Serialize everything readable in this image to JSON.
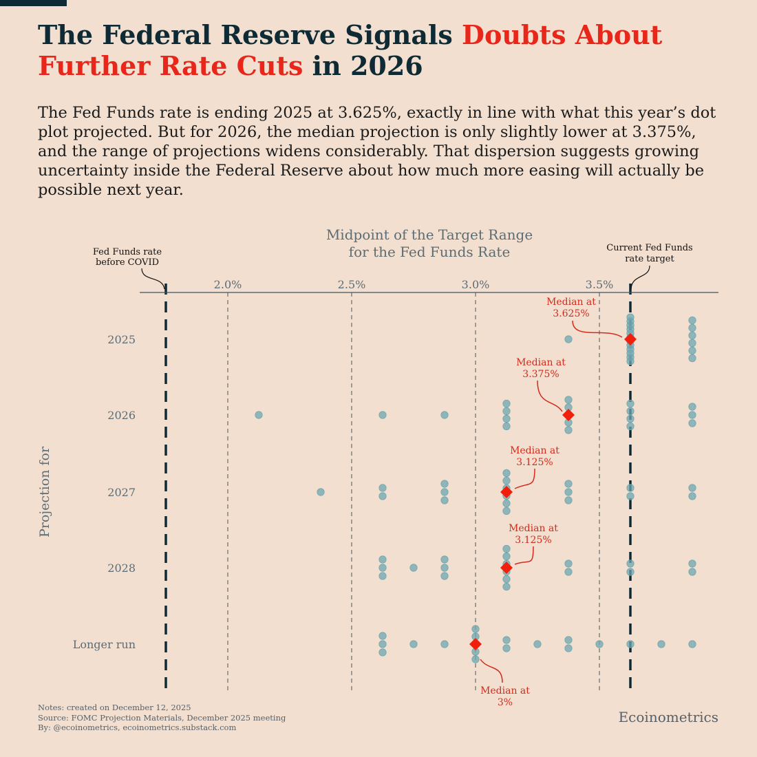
{
  "title": {
    "part1": "The Federal Reserve Signals ",
    "part2_red": "Doubts About Further Rate Cuts",
    "part3": " in 2026"
  },
  "subtitle": "The Fed Funds rate is ending 2025 at 3.625%, exactly in line with what this year’s dot plot projected. But for 2026, the median projection is only slightly lower at 3.375%, and the range of projections widens considerably. That dispersion suggests growing uncertainty inside the Federal Reserve about how much more easing will actually be possible next year.",
  "colors": {
    "navy": "#0e2a35",
    "red": "#e8261a",
    "dot": "#6fa7b0",
    "background": "#f2dfcf"
  },
  "chart_data": {
    "type": "scatter",
    "title": "Midpoint of the Target Range for the Fed Funds Rate",
    "title_lines": [
      "Midpoint of the Target Range",
      "for the Fed Funds Rate"
    ],
    "ylabel": "Projection for",
    "xlim": [
      1.7,
      3.92
    ],
    "x_ticks": [
      2.0,
      2.5,
      3.0,
      3.5
    ],
    "x_tick_labels": [
      "2.0%",
      "2.5%",
      "3.0%",
      "3.5%"
    ],
    "categories": [
      "2025",
      "2026",
      "2027",
      "2028",
      "Longer run"
    ],
    "reference_lines": [
      {
        "value": 1.75,
        "label_lines": [
          "Fed Funds rate",
          "before COVID"
        ]
      },
      {
        "value": 3.625,
        "label_lines": [
          "Current Fed Funds",
          "rate target"
        ]
      }
    ],
    "dots": [
      [
        {
          "x": 3.375,
          "n": 1
        },
        {
          "x": 3.625,
          "n": 12
        },
        {
          "x": 3.875,
          "n": 6
        }
      ],
      [
        {
          "x": 2.125,
          "n": 1
        },
        {
          "x": 2.625,
          "n": 1
        },
        {
          "x": 2.875,
          "n": 1
        },
        {
          "x": 3.125,
          "n": 4
        },
        {
          "x": 3.375,
          "n": 5
        },
        {
          "x": 3.625,
          "n": 4
        },
        {
          "x": 3.875,
          "n": 3
        }
      ],
      [
        {
          "x": 2.375,
          "n": 1
        },
        {
          "x": 2.625,
          "n": 2
        },
        {
          "x": 2.875,
          "n": 3
        },
        {
          "x": 3.125,
          "n": 6
        },
        {
          "x": 3.375,
          "n": 3
        },
        {
          "x": 3.625,
          "n": 2
        },
        {
          "x": 3.875,
          "n": 2
        }
      ],
      [
        {
          "x": 2.625,
          "n": 3
        },
        {
          "x": 2.75,
          "n": 1
        },
        {
          "x": 2.875,
          "n": 3
        },
        {
          "x": 3.125,
          "n": 6
        },
        {
          "x": 3.375,
          "n": 2
        },
        {
          "x": 3.625,
          "n": 2
        },
        {
          "x": 3.875,
          "n": 2
        }
      ],
      [
        {
          "x": 2.625,
          "n": 3
        },
        {
          "x": 2.75,
          "n": 1
        },
        {
          "x": 2.875,
          "n": 1
        },
        {
          "x": 3.0,
          "n": 5
        },
        {
          "x": 3.125,
          "n": 2
        },
        {
          "x": 3.25,
          "n": 1
        },
        {
          "x": 3.375,
          "n": 2
        },
        {
          "x": 3.5,
          "n": 1
        },
        {
          "x": 3.625,
          "n": 1
        },
        {
          "x": 3.75,
          "n": 1
        },
        {
          "x": 3.875,
          "n": 1
        }
      ]
    ],
    "medians": [
      3.625,
      3.375,
      3.125,
      3.125,
      3.0
    ],
    "median_labels": [
      [
        "Median at",
        "3.625%"
      ],
      [
        "Median at",
        "3.375%"
      ],
      [
        "Median at",
        "3.125%"
      ],
      [
        "Median at",
        "3.125%"
      ],
      [
        "Median at",
        "3%"
      ]
    ]
  },
  "notes": [
    "Notes: created on December 12, 2025",
    "Source: FOMC Projection Materials, December 2025 meeting",
    "By: @ecoinometrics, ecoinometrics.substack.com"
  ],
  "brand": "Ecoinometrics"
}
